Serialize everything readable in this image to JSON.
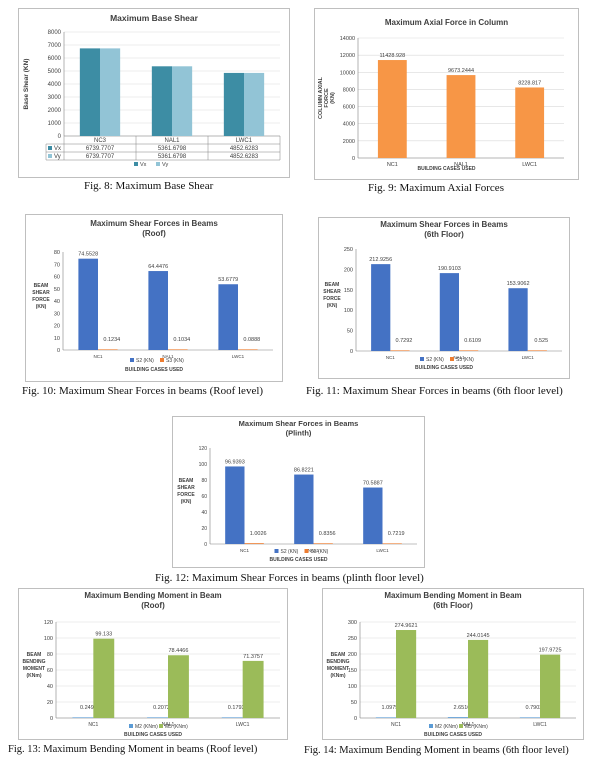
{
  "charts": [
    {
      "type": "bar",
      "title": "Maximum Base Shear",
      "ylabel": "Base Shear (KN)",
      "xlabel": "",
      "categories": [
        "NC3",
        "NAL1",
        "LWC1"
      ],
      "ylim": [
        0,
        8000
      ],
      "yticks": [
        0,
        1000,
        2000,
        3000,
        4000,
        5000,
        6000,
        7000,
        8000
      ],
      "series": [
        {
          "name": "Vx",
          "values": [
            6739.7707,
            5361.6798,
            4852.6283
          ],
          "value_labels": [
            "6739.7707",
            "5361.6798",
            "4852.6283"
          ],
          "color": "#3d8da4"
        },
        {
          "name": "Vy",
          "values": [
            6739.7707,
            5361.6798,
            4852.6283
          ],
          "value_labels": [
            "6739.7707",
            "5361.6798",
            "4852.6283"
          ],
          "color": "#92c4d6"
        }
      ],
      "legend": "bottom",
      "data_table": true,
      "grid": true,
      "caption": "Fig. 8: Maximum Base Shear"
    },
    {
      "type": "bar",
      "title": "Maximum Axial Force in Column",
      "ylabel": "COLUMN AXIAL FORCE (KN)",
      "xlabel": "BUILDING CASES USED",
      "categories": [
        "NC1",
        "NAL1",
        "LWC1"
      ],
      "ylim": [
        0,
        14000
      ],
      "yticks": [
        0,
        2000,
        4000,
        6000,
        8000,
        10000,
        12000,
        14000
      ],
      "series": [
        {
          "name": "",
          "values": [
            11428.928,
            9673.2444,
            8228.817
          ],
          "value_labels": [
            "11428.928",
            "9673.2444",
            "8228.817"
          ],
          "color": "#f79646"
        }
      ],
      "legend": "none",
      "grid": true,
      "caption": "Fig. 9: Maximum Axial Forces"
    },
    {
      "type": "bar",
      "title": "Maximum Shear Forces in Beams\n(Roof)",
      "ylabel": "BEAM SHEAR FORCE (KN)",
      "xlabel": "BUILDING CASES USED",
      "categories": [
        "NC1",
        "NAL1",
        "LWC1"
      ],
      "ylim": [
        0,
        80
      ],
      "yticks": [
        0,
        10,
        20,
        30,
        40,
        50,
        60,
        70,
        80
      ],
      "series": [
        {
          "name": "S2 (KN)",
          "values": [
            74.5528,
            64.4476,
            53.6779
          ],
          "value_labels": [
            "74.5528",
            "64.4476",
            "53.6779"
          ],
          "color": "#4472c4"
        },
        {
          "name": "S3 (KN)",
          "values": [
            0.1234,
            0.1034,
            0.0888
          ],
          "value_labels": [
            "0.1234",
            "0.1034",
            "0.0888"
          ],
          "color": "#ed7d31"
        }
      ],
      "legend": "bottom",
      "grid": false,
      "caption": "Fig. 10: Maximum Shear Forces in beams (Roof level)"
    },
    {
      "type": "bar",
      "title": "Maximum Shear Forces in Beams\n(6th Floor)",
      "ylabel": "BEAM SHEAR FORCE (KN)",
      "xlabel": "BUILDING CASES USED",
      "categories": [
        "NC1",
        "NAL1",
        "LWC1"
      ],
      "ylim": [
        0,
        250
      ],
      "yticks": [
        0,
        50,
        100,
        150,
        200,
        250
      ],
      "series": [
        {
          "name": "S2 (KN)",
          "values": [
            212.9256,
            190.9103,
            153.9062
          ],
          "value_labels": [
            "212.9256",
            "190.9103",
            "153.9062"
          ],
          "color": "#4472c4"
        },
        {
          "name": "S3 (KN)",
          "values": [
            0.7292,
            0.6109,
            0.525
          ],
          "value_labels": [
            "0.7292",
            "0.6109",
            "0.525"
          ],
          "color": "#ed7d31"
        }
      ],
      "legend": "bottom",
      "grid": false,
      "caption": "Fig. 11: Maximum Shear Forces in beams (6th floor level)"
    },
    {
      "type": "bar",
      "title": "Maximum Shear Forces in Beams\n(Plinth)",
      "ylabel": "BEAM SHEAR FORCE (KN)",
      "xlabel": "BUILDING CASES USED",
      "categories": [
        "NC1",
        "NAL1",
        "LWC1"
      ],
      "ylim": [
        0,
        120
      ],
      "yticks": [
        0,
        20,
        40,
        60,
        80,
        100,
        120
      ],
      "series": [
        {
          "name": "S2 (KN)",
          "values": [
            96.9393,
            86.8221,
            70.5887
          ],
          "value_labels": [
            "96.9393",
            "86.8221",
            "70.5887"
          ],
          "color": "#4472c4"
        },
        {
          "name": "S3 (KN)",
          "values": [
            1.0026,
            0.8356,
            0.7219
          ],
          "value_labels": [
            "1.0026",
            "0.8356",
            "0.7219"
          ],
          "color": "#ed7d31"
        }
      ],
      "legend": "bottom",
      "grid": false,
      "caption": "Fig. 12: Maximum Shear Forces in beams (plinth floor level)"
    },
    {
      "type": "bar",
      "title": "Maximum Bending Moment in Beam\n(Roof)",
      "ylabel": "BEAM BENDING MOMENT (KNm)",
      "xlabel": "BUILDING CASES USED",
      "categories": [
        "NC1",
        "NAL1",
        "LWC1"
      ],
      "ylim": [
        0,
        120
      ],
      "yticks": [
        0,
        20,
        40,
        60,
        80,
        100,
        120
      ],
      "series": [
        {
          "name": "M2 (KNm)",
          "values": [
            0.249,
            0.2072,
            0.1793
          ],
          "value_labels": [
            "0.249",
            "0.2072",
            "0.1793"
          ],
          "color": "#5b9bd5"
        },
        {
          "name": "M3 (KNm)",
          "values": [
            99.133,
            78.4466,
            71.3757
          ],
          "value_labels": [
            "99.133",
            "78.4466",
            "71.3757"
          ],
          "color": "#9bbb59"
        }
      ],
      "legend": "bottom",
      "grid": true,
      "caption": "Fig. 13: Maximum Bending Moment in beams (Roof level)"
    },
    {
      "type": "bar",
      "title": "Maximum Bending Moment in Beam\n(6th Floor)",
      "ylabel": "BEAM BENDING MOMENT (KNm)",
      "xlabel": "BUILDING CASES USED",
      "categories": [
        "NC1",
        "NAL1",
        "LWC1"
      ],
      "ylim": [
        0,
        300
      ],
      "yticks": [
        0,
        50,
        100,
        150,
        200,
        250,
        300
      ],
      "series": [
        {
          "name": "M2 (KNm)",
          "values": [
            1.0975,
            2.6516,
            0.7902
          ],
          "value_labels": [
            "1.0975",
            "2.6516",
            "0.7902"
          ],
          "color": "#5b9bd5"
        },
        {
          "name": "M3 (KNm)",
          "values": [
            274.9621,
            244.0145,
            197.9725
          ],
          "value_labels": [
            "274.9621",
            "244.0145",
            "197.9725"
          ],
          "color": "#9bbb59"
        }
      ],
      "legend": "bottom",
      "grid": true,
      "caption": "Fig. 14: Maximum Bending Moment in beams (6th floor level)"
    }
  ],
  "chart_data": [
    {
      "type": "bar",
      "title": "Maximum Base Shear",
      "ylabel": "Base Shear (KN)",
      "categories": [
        "NC3",
        "NAL1",
        "LWC1"
      ],
      "ylim": [
        0,
        8000
      ],
      "series": [
        {
          "name": "Vx",
          "values": [
            6739.7707,
            5361.6798,
            4852.6283
          ]
        },
        {
          "name": "Vy",
          "values": [
            6739.7707,
            5361.6798,
            4852.6283
          ]
        }
      ]
    },
    {
      "type": "bar",
      "title": "Maximum Axial Force in Column",
      "ylabel": "COLUMN AXIAL FORCE (KN)",
      "xlabel": "BUILDING CASES USED",
      "categories": [
        "NC1",
        "NAL1",
        "LWC1"
      ],
      "ylim": [
        0,
        14000
      ],
      "series": [
        {
          "values": [
            11428.928,
            9673.2444,
            8228.817
          ]
        }
      ]
    },
    {
      "type": "bar",
      "title": "Maximum Shear Forces in Beams (Roof)",
      "ylabel": "BEAM SHEAR FORCE (KN)",
      "xlabel": "BUILDING CASES USED",
      "categories": [
        "NC1",
        "NAL1",
        "LWC1"
      ],
      "ylim": [
        0,
        80
      ],
      "series": [
        {
          "name": "S2 (KN)",
          "values": [
            74.5528,
            64.4476,
            53.6779
          ]
        },
        {
          "name": "S3 (KN)",
          "values": [
            0.1234,
            0.1034,
            0.0888
          ]
        }
      ]
    },
    {
      "type": "bar",
      "title": "Maximum Shear Forces in Beams (6th Floor)",
      "ylabel": "BEAM SHEAR FORCE (KN)",
      "xlabel": "BUILDING CASES USED",
      "categories": [
        "NC1",
        "NAL1",
        "LWC1"
      ],
      "ylim": [
        0,
        250
      ],
      "series": [
        {
          "name": "S2 (KN)",
          "values": [
            212.9256,
            190.9103,
            153.9062
          ]
        },
        {
          "name": "S3 (KN)",
          "values": [
            0.7292,
            0.6109,
            0.525
          ]
        }
      ]
    },
    {
      "type": "bar",
      "title": "Maximum Shear Forces in Beams (Plinth)",
      "ylabel": "BEAM SHEAR FORCE (KN)",
      "xlabel": "BUILDING CASES USED",
      "categories": [
        "NC1",
        "NAL1",
        "LWC1"
      ],
      "ylim": [
        0,
        120
      ],
      "series": [
        {
          "name": "S2 (KN)",
          "values": [
            96.9393,
            86.8221,
            70.5887
          ]
        },
        {
          "name": "S3 (KN)",
          "values": [
            1.0026,
            0.8356,
            0.7219
          ]
        }
      ]
    },
    {
      "type": "bar",
      "title": "Maximum Bending Moment in Beam (Roof)",
      "ylabel": "BEAM BENDING MOMENT (KNm)",
      "xlabel": "BUILDING CASES USED",
      "categories": [
        "NC1",
        "NAL1",
        "LWC1"
      ],
      "ylim": [
        0,
        120
      ],
      "series": [
        {
          "name": "M2 (KNm)",
          "values": [
            0.249,
            0.2072,
            0.1793
          ]
        },
        {
          "name": "M3 (KNm)",
          "values": [
            99.133,
            78.4466,
            71.3757
          ]
        }
      ]
    },
    {
      "type": "bar",
      "title": "Maximum Bending Moment in Beam (6th Floor)",
      "ylabel": "BEAM BENDING MOMENT (KNm)",
      "xlabel": "BUILDING CASES USED",
      "categories": [
        "NC1",
        "NAL1",
        "LWC1"
      ],
      "ylim": [
        0,
        300
      ],
      "series": [
        {
          "name": "M2 (KNm)",
          "values": [
            1.0975,
            2.6516,
            0.7902
          ]
        },
        {
          "name": "M3 (KNm)",
          "values": [
            274.9621,
            244.0145,
            197.9725
          ]
        }
      ]
    }
  ]
}
